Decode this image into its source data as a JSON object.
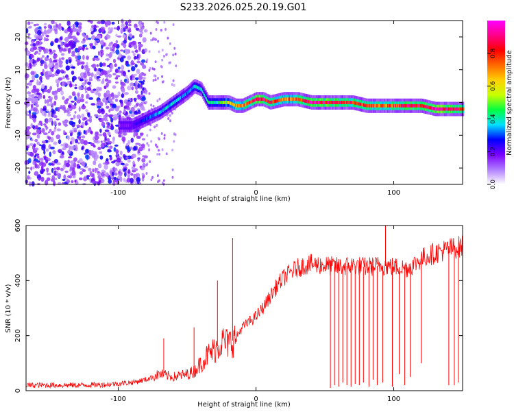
{
  "title": "S233.2026.025.20.19.G01",
  "chart_data": [
    {
      "type": "heatmap",
      "title": "S233.2026.025.20.19.G01",
      "xlabel": "Height of straight line (km)",
      "ylabel": "Frequency (Hz)",
      "xlim": [
        -167,
        150
      ],
      "ylim": [
        -25,
        25
      ],
      "xticks": [
        -100,
        0,
        100
      ],
      "yticks": [
        -20,
        -10,
        0,
        10,
        20
      ],
      "grid": false,
      "colorbar": {
        "label": "Normalized spectral amplitude",
        "range": [
          0,
          1
        ],
        "ticks": [
          0.0,
          0.2,
          0.4,
          0.6,
          0.8
        ],
        "tick_labels": [
          "0.0",
          "0.2",
          "0.4",
          "0.6",
          "0.8"
        ],
        "colors": [
          "#ffffff",
          "#b07cff",
          "#7a00ff",
          "#0000ff",
          "#00e0ff",
          "#00ff40",
          "#c8ff00",
          "#ffd000",
          "#ff6a00",
          "#ff0000",
          "#ff0088",
          "#ff00ff"
        ]
      },
      "ridge": {
        "x": [
          -100,
          -90,
          -80,
          -70,
          -60,
          -50,
          -45,
          -40,
          -35,
          -30,
          -25,
          -20,
          -15,
          -10,
          -5,
          0,
          5,
          10,
          20,
          30,
          40,
          50,
          60,
          70,
          80,
          90,
          100,
          110,
          120,
          130,
          140,
          150
        ],
        "frequency": [
          -7,
          -7,
          -5,
          -3,
          0,
          3,
          5,
          4,
          0,
          0,
          0,
          0,
          -1,
          -1,
          0,
          1,
          1,
          0,
          1,
          1,
          0,
          0,
          0,
          0,
          -1,
          -1,
          -1,
          -1,
          -1,
          -2,
          -2,
          -2
        ],
        "peak_amplitude": [
          0.15,
          0.2,
          0.3,
          0.35,
          0.4,
          0.3,
          0.4,
          0.4,
          0.45,
          0.4,
          0.5,
          0.6,
          0.7,
          0.75,
          0.8,
          0.95,
          0.9,
          0.8,
          0.7,
          0.75,
          0.95,
          0.9,
          0.85,
          0.8,
          0.8,
          0.75,
          0.8,
          0.9,
          0.85,
          0.95,
          0.9,
          0.8
        ]
      },
      "noise_region": {
        "x_range": [
          -167,
          -80
        ],
        "frequency_range": [
          -25,
          25
        ],
        "amplitude": 0.15
      }
    },
    {
      "type": "line",
      "xlabel": "Height of straight line (km)",
      "ylabel": "SNR (10 * v/v)",
      "xlim": [
        -167,
        150
      ],
      "ylim": [
        0,
        600
      ],
      "xticks": [
        -100,
        0,
        100
      ],
      "yticks": [
        0,
        200,
        400,
        600
      ],
      "grid": false,
      "series": [
        {
          "name": "SNR",
          "color": "#ff0000",
          "x": [
            -167,
            -150,
            -130,
            -110,
            -90,
            -80,
            -70,
            -60,
            -50,
            -45,
            -40,
            -35,
            -30,
            -25,
            -20,
            -15,
            -10,
            -5,
            0,
            5,
            10,
            15,
            20,
            25,
            30,
            35,
            40,
            50,
            60,
            70,
            80,
            90,
            100,
            110,
            115,
            120,
            130,
            140,
            150
          ],
          "y": [
            20,
            20,
            20,
            22,
            30,
            40,
            60,
            50,
            60,
            70,
            100,
            130,
            150,
            180,
            170,
            190,
            230,
            250,
            270,
            300,
            340,
            380,
            410,
            430,
            445,
            455,
            460,
            455,
            450,
            455,
            450,
            455,
            450,
            445,
            460,
            480,
            500,
            515,
            525
          ]
        }
      ],
      "spikes_up": [
        {
          "x": -67,
          "y": 190
        },
        {
          "x": -45,
          "y": 230
        },
        {
          "x": -28,
          "y": 400
        },
        {
          "x": -17,
          "y": 555
        },
        {
          "x": 94,
          "y": 600
        }
      ],
      "dropouts": [
        {
          "x": 54,
          "y": 10
        },
        {
          "x": 57,
          "y": 20
        },
        {
          "x": 60,
          "y": 15
        },
        {
          "x": 63,
          "y": 30
        },
        {
          "x": 66,
          "y": 20
        },
        {
          "x": 69,
          "y": 15
        },
        {
          "x": 72,
          "y": 25
        },
        {
          "x": 75,
          "y": 20
        },
        {
          "x": 78,
          "y": 30
        },
        {
          "x": 82,
          "y": 15
        },
        {
          "x": 85,
          "y": 40
        },
        {
          "x": 88,
          "y": 20
        },
        {
          "x": 92,
          "y": 30
        },
        {
          "x": 99,
          "y": 15
        },
        {
          "x": 104,
          "y": 60
        },
        {
          "x": 108,
          "y": 20
        },
        {
          "x": 112,
          "y": 50
        },
        {
          "x": 120,
          "y": 100
        },
        {
          "x": 140,
          "y": 20
        },
        {
          "x": 144,
          "y": 20
        },
        {
          "x": 147,
          "y": 30
        }
      ]
    }
  ]
}
